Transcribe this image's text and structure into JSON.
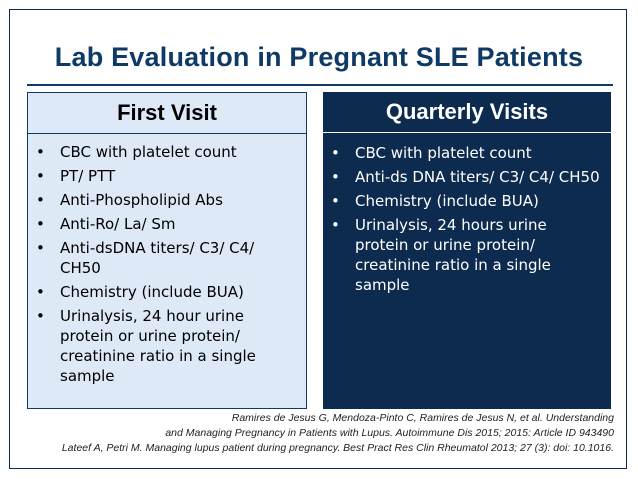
{
  "slide": {
    "title": "Lab Evaluation in Pregnant SLE Patients"
  },
  "first_visit": {
    "header": "First Visit",
    "items": [
      "CBC with platelet count",
      "PT/ PTT",
      "Anti-Phospholipid Abs",
      "Anti-Ro/ La/ Sm",
      "Anti-dsDNA titers/ C3/ C4/ CH50",
      "Chemistry (include BUA)",
      "Urinalysis, 24 hour urine protein or urine protein/ creatinine ratio in a single sample"
    ]
  },
  "quarterly_visits": {
    "header": "Quarterly Visits",
    "items": [
      "CBC with platelet count",
      "Anti-ds DNA titers/ C3/ C4/ CH50",
      "Chemistry (include BUA)",
      "Urinalysis, 24 hours urine protein or urine protein/ creatinine ratio in a single sample"
    ]
  },
  "references": {
    "line1": "Ramires de Jesus G, Mendoza-Pinto C, Ramires de Jesus N, et al. Understanding",
    "line2": "and Managing Pregnancy in Patients with Lupus. Autoimmune Dis 2015; 2015: Article ID 943490",
    "line3": "Lateef A, Petri M. Managing lupus patient during pregnancy. Best Pract Res Clin Rheumatol 2013; 27 (3): doi: 10.1016."
  },
  "bullet_glyph": "•",
  "colors": {
    "title": "#0f3a66",
    "first_visit_bg": "#dde9f7",
    "quarterly_bg": "#0d2a4f"
  }
}
